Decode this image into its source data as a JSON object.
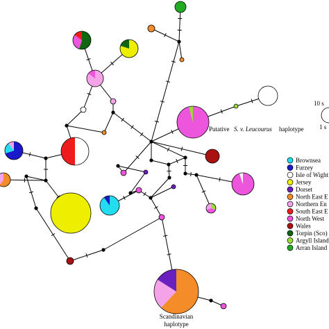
{
  "annotations": {
    "putative_a": "Putative",
    "putative_species": "S. v. Leucourus",
    "putative_b": "haplotype",
    "scandinavian_line1": "Scandinavian",
    "scandinavian_line2": "haplotype"
  },
  "scale": {
    "large_label": "10 s",
    "small_label": "1 s"
  },
  "legend": [
    {
      "label": "Brownsea",
      "color": "#22ddee"
    },
    {
      "label": "Furzey",
      "color": "#1a1acc"
    },
    {
      "label": "Isle of Wight",
      "color": "#ffffff"
    },
    {
      "label": "Jersey",
      "color": "#eeee00"
    },
    {
      "label": "Dorset",
      "color": "#6a1fbf"
    },
    {
      "label": "North East E",
      "color": "#f58c2a"
    },
    {
      "label": "Northern En",
      "color": "#f4a3e8"
    },
    {
      "label": "South East E",
      "color": "#ee1c1c"
    },
    {
      "label": "North West",
      "color": "#ee55dd"
    },
    {
      "label": "Wales",
      "color": "#aa1111"
    },
    {
      "label": "Torpin (Sco)",
      "color": "#116611"
    },
    {
      "label": "Argyll Island",
      "color": "#99dd33"
    },
    {
      "label": "Arran Island",
      "color": "#22aa22"
    }
  ]
}
